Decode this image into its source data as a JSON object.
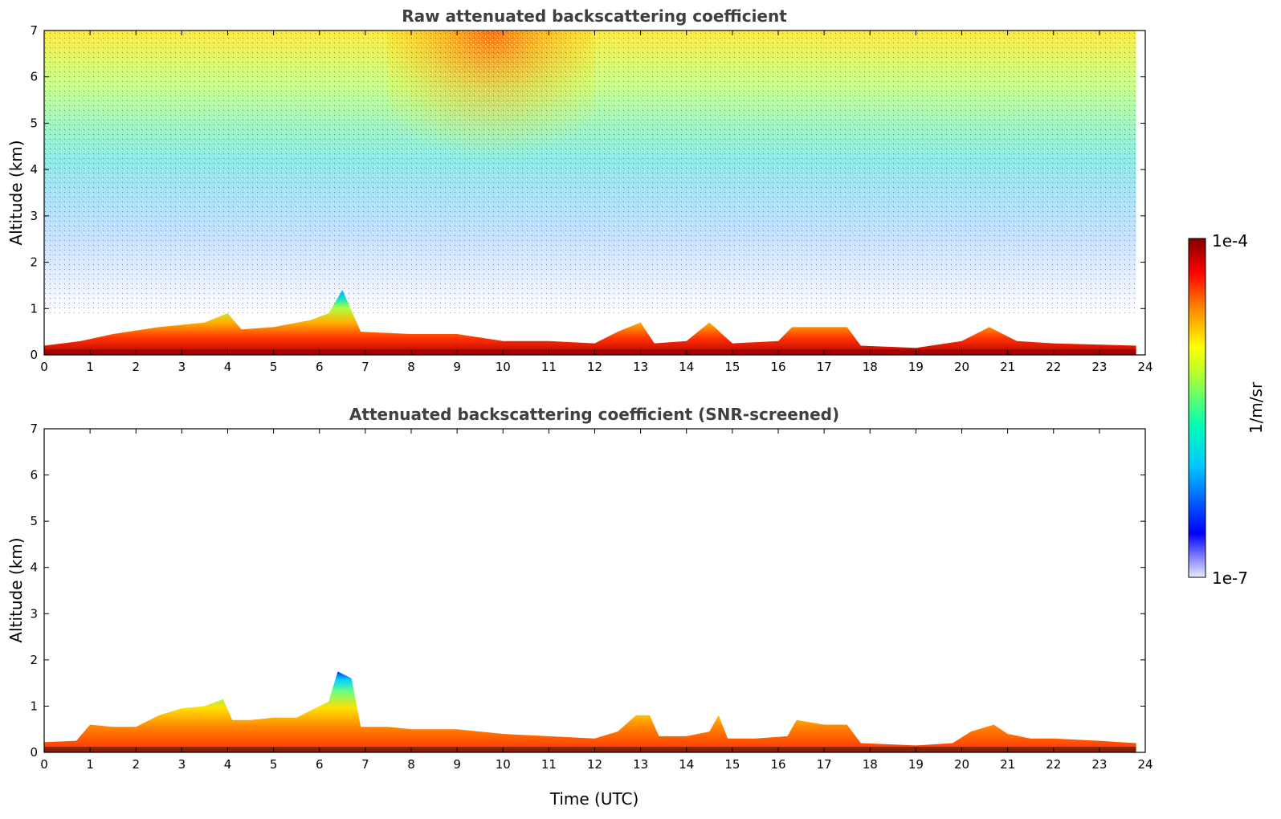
{
  "chart_data": [
    {
      "type": "heatmap",
      "title": "Raw attenuated backscattering coefficient",
      "xlabel": "",
      "ylabel": "Altitude (km)",
      "xlim": [
        0,
        24
      ],
      "ylim": [
        0,
        7
      ],
      "x_ticks": [
        "0",
        "1",
        "2",
        "3",
        "4",
        "5",
        "6",
        "7",
        "8",
        "9",
        "10",
        "11",
        "12",
        "13",
        "14",
        "15",
        "16",
        "17",
        "18",
        "19",
        "20",
        "21",
        "22",
        "23",
        "24"
      ],
      "y_ticks": [
        "0",
        "1",
        "2",
        "3",
        "4",
        "5",
        "6",
        "7"
      ],
      "grid": false,
      "layer_top_km": [
        [
          0,
          0.2
        ],
        [
          0.8,
          0.3
        ],
        [
          1.5,
          0.45
        ],
        [
          2.5,
          0.6
        ],
        [
          3.5,
          0.7
        ],
        [
          4,
          0.9
        ],
        [
          4.3,
          0.55
        ],
        [
          5,
          0.6
        ],
        [
          5.8,
          0.75
        ],
        [
          6.2,
          0.9
        ],
        [
          6.5,
          1.4
        ],
        [
          6.9,
          0.5
        ],
        [
          8,
          0.45
        ],
        [
          9,
          0.45
        ],
        [
          10,
          0.3
        ],
        [
          11,
          0.3
        ],
        [
          12,
          0.25
        ],
        [
          12.5,
          0.5
        ],
        [
          13,
          0.7
        ],
        [
          13.3,
          0.25
        ],
        [
          14,
          0.3
        ],
        [
          14.5,
          0.7
        ],
        [
          15,
          0.25
        ],
        [
          16,
          0.3
        ],
        [
          16.3,
          0.6
        ],
        [
          17.5,
          0.6
        ],
        [
          17.8,
          0.2
        ],
        [
          19,
          0.15
        ],
        [
          20,
          0.3
        ],
        [
          20.6,
          0.6
        ],
        [
          21.2,
          0.3
        ],
        [
          22,
          0.25
        ],
        [
          23.8,
          0.2
        ]
      ],
      "background_signal": "high-altitude noise increasing with altitude, strongest near 9-11 UTC"
    },
    {
      "type": "heatmap",
      "title": "Attenuated backscattering coefficient (SNR-screened)",
      "xlabel": "Time (UTC)",
      "ylabel": "Altitude (km)",
      "xlim": [
        0,
        24
      ],
      "ylim": [
        0,
        7
      ],
      "x_ticks": [
        "0",
        "1",
        "2",
        "3",
        "4",
        "5",
        "6",
        "7",
        "8",
        "9",
        "10",
        "11",
        "12",
        "13",
        "14",
        "15",
        "16",
        "17",
        "18",
        "19",
        "20",
        "21",
        "22",
        "23",
        "24"
      ],
      "y_ticks": [
        "0",
        "1",
        "2",
        "3",
        "4",
        "5",
        "6",
        "7"
      ],
      "grid": false,
      "layer_top_km": [
        [
          0,
          0.22
        ],
        [
          0.7,
          0.25
        ],
        [
          1,
          0.6
        ],
        [
          1.5,
          0.55
        ],
        [
          2,
          0.55
        ],
        [
          2.5,
          0.8
        ],
        [
          3,
          0.95
        ],
        [
          3.5,
          1.0
        ],
        [
          3.9,
          1.15
        ],
        [
          4.1,
          0.7
        ],
        [
          4.5,
          0.7
        ],
        [
          5,
          0.75
        ],
        [
          5.5,
          0.75
        ],
        [
          5.9,
          0.95
        ],
        [
          6.2,
          1.1
        ],
        [
          6.4,
          1.75
        ],
        [
          6.7,
          1.6
        ],
        [
          6.9,
          0.55
        ],
        [
          7.5,
          0.55
        ],
        [
          8,
          0.5
        ],
        [
          9,
          0.5
        ],
        [
          10,
          0.4
        ],
        [
          11,
          0.35
        ],
        [
          12,
          0.3
        ],
        [
          12.5,
          0.45
        ],
        [
          12.9,
          0.8
        ],
        [
          13.2,
          0.8
        ],
        [
          13.4,
          0.35
        ],
        [
          14,
          0.35
        ],
        [
          14.5,
          0.45
        ],
        [
          14.7,
          0.8
        ],
        [
          14.9,
          0.3
        ],
        [
          15.5,
          0.3
        ],
        [
          16.2,
          0.35
        ],
        [
          16.4,
          0.7
        ],
        [
          17,
          0.6
        ],
        [
          17.5,
          0.6
        ],
        [
          17.8,
          0.2
        ],
        [
          19,
          0.15
        ],
        [
          19.8,
          0.2
        ],
        [
          20.2,
          0.45
        ],
        [
          20.7,
          0.6
        ],
        [
          21,
          0.4
        ],
        [
          21.5,
          0.3
        ],
        [
          22,
          0.3
        ],
        [
          23,
          0.25
        ],
        [
          23.8,
          0.2
        ]
      ]
    }
  ],
  "colorbar": {
    "label": "1/m/sr",
    "max_label": "1e-4",
    "min_label": "1e-7",
    "colormap": [
      "#ffffff",
      "#0000ff",
      "#00c0ff",
      "#00ffb0",
      "#ffff00",
      "#ff8000",
      "#ff0000",
      "#800000"
    ]
  }
}
